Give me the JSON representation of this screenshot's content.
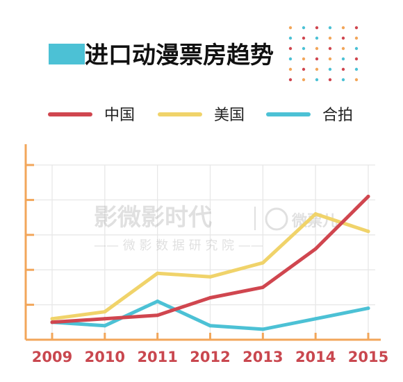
{
  "chart_data": {
    "type": "line",
    "title": "进口动漫票房趋势",
    "x": [
      "2009",
      "2010",
      "2011",
      "2012",
      "2013",
      "2014",
      "2015"
    ],
    "series": [
      {
        "name": "中国",
        "color": "#d0464f",
        "values": [
          0.5,
          0.6,
          0.7,
          1.2,
          1.5,
          2.6,
          4.1
        ]
      },
      {
        "name": "美国",
        "color": "#f0d36a",
        "values": [
          0.6,
          0.8,
          1.9,
          1.8,
          2.2,
          3.6,
          3.1
        ]
      },
      {
        "name": "合拍",
        "color": "#4cc1d5",
        "values": [
          0.5,
          0.4,
          1.1,
          0.4,
          0.3,
          0.6,
          0.9
        ]
      }
    ],
    "ylim": [
      0,
      5
    ],
    "y_tick_count": 5,
    "grid": true,
    "legend": "top",
    "colors": {
      "title_bar": "#4cc1d5",
      "axis": "#f2a65a",
      "grid": "#e7e7e7",
      "tick_label": "#c9474f"
    }
  },
  "watermark": {
    "brand": "影微影时代",
    "subtitle": "—— 微 影 数 据 研 究 院 ——",
    "logo_text": "微票儿"
  }
}
